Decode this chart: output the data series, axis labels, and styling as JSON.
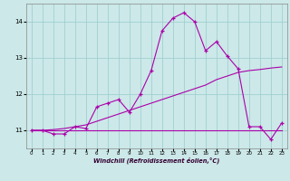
{
  "x": [
    0,
    1,
    2,
    3,
    4,
    5,
    6,
    7,
    8,
    9,
    10,
    11,
    12,
    13,
    14,
    15,
    16,
    17,
    18,
    19,
    20,
    21,
    22,
    23
  ],
  "y_main": [
    11.0,
    11.0,
    10.9,
    10.9,
    11.1,
    11.05,
    11.65,
    11.75,
    11.85,
    11.5,
    12.0,
    12.65,
    13.75,
    14.1,
    14.25,
    14.0,
    13.2,
    13.45,
    13.05,
    12.7,
    11.1,
    11.1,
    10.75,
    11.2
  ],
  "y_trend": [
    11.0,
    11.0,
    11.02,
    11.05,
    11.1,
    11.15,
    11.25,
    11.35,
    11.45,
    11.55,
    11.65,
    11.75,
    11.85,
    11.95,
    12.05,
    12.15,
    12.25,
    12.4,
    12.5,
    12.6,
    12.65,
    12.68,
    12.72,
    12.75
  ],
  "y_flat": [
    11.0,
    11.0,
    11.0,
    11.0,
    11.0,
    11.0,
    11.0,
    11.0,
    11.0,
    11.0,
    11.0,
    11.0,
    11.0,
    11.0,
    11.0,
    11.0,
    11.0,
    11.0,
    11.0,
    11.0,
    11.0,
    11.0,
    11.0,
    11.0
  ],
  "background_color": "#cce8e8",
  "grid_color": "#99cccc",
  "line_color": "#aa00aa",
  "xlabel": "Windchill (Refroidissement éolien,°C)",
  "ylim": [
    10.5,
    14.5
  ],
  "xlim": [
    -0.5,
    23.5
  ],
  "yticks": [
    11,
    12,
    13,
    14
  ],
  "xticks": [
    0,
    1,
    2,
    3,
    4,
    5,
    6,
    7,
    8,
    9,
    10,
    11,
    12,
    13,
    14,
    15,
    16,
    17,
    18,
    19,
    20,
    21,
    22,
    23
  ]
}
